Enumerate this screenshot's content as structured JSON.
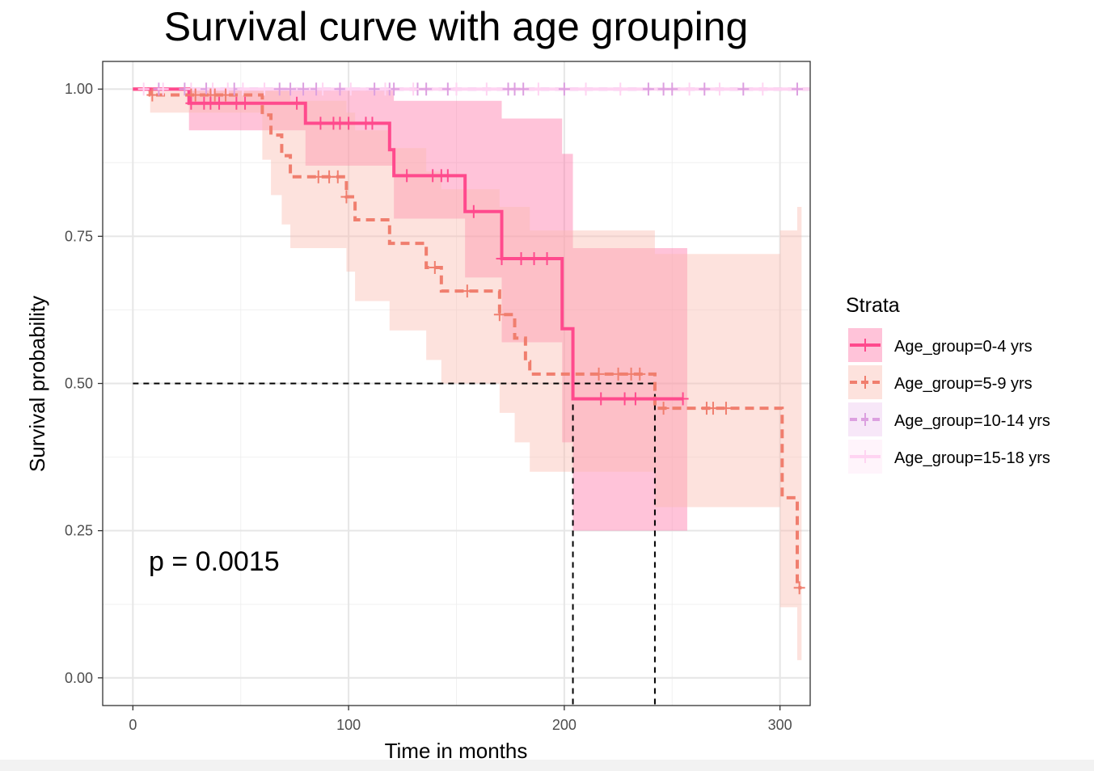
{
  "chart_data": {
    "type": "line",
    "title": "Survival curve with age grouping",
    "xlabel": "Time in months",
    "ylabel": "Survival probability",
    "xlim": [
      -14,
      314
    ],
    "ylim": [
      -0.047,
      1.047
    ],
    "x_ticks": [
      0,
      100,
      200,
      300
    ],
    "x_tick_labels": [
      "0",
      "100",
      "200",
      "300"
    ],
    "y_ticks": [
      0,
      0.25,
      0.5,
      0.75,
      1.0
    ],
    "y_tick_labels": [
      "0.00",
      "0.25",
      "0.50",
      "0.75",
      "1.00"
    ],
    "grid": true,
    "legend": {
      "title": "Strata",
      "position": "right"
    },
    "annotation": "p = 0.0015",
    "median_lines": [
      {
        "x": 204,
        "y": 0.5
      },
      {
        "x": 242,
        "y": 0.5
      }
    ],
    "series": [
      {
        "name": "Age_group=0-4 yrs",
        "color": "#ff4a8d",
        "fill": "#ff6fa5",
        "dash": "solid",
        "steps": [
          [
            0,
            1.0
          ],
          [
            26,
            0.976
          ],
          [
            80,
            0.942
          ],
          [
            119,
            0.897
          ],
          [
            121,
            0.853
          ],
          [
            154,
            0.792
          ],
          [
            171,
            0.712
          ],
          [
            199,
            0.593
          ],
          [
            204,
            0.474
          ],
          [
            255,
            0.474
          ]
        ],
        "lower": [
          [
            0,
            1.0
          ],
          [
            26,
            0.93
          ],
          [
            80,
            0.87
          ],
          [
            121,
            0.78
          ],
          [
            154,
            0.68
          ],
          [
            171,
            0.57
          ],
          [
            199,
            0.4
          ],
          [
            204,
            0.25
          ],
          [
            255,
            0.25
          ]
        ],
        "upper": [
          [
            0,
            1.0
          ],
          [
            26,
            1.0
          ],
          [
            121,
            0.98
          ],
          [
            171,
            0.95
          ],
          [
            199,
            0.89
          ],
          [
            204,
            0.73
          ],
          [
            255,
            0.73
          ]
        ],
        "censor": [
          27,
          33,
          36,
          40,
          48,
          52,
          76,
          87,
          93,
          96,
          100,
          108,
          111,
          127,
          139,
          143,
          146,
          158,
          171,
          180,
          186,
          192,
          217,
          228,
          233,
          255
        ]
      },
      {
        "name": "Age_group=5-9 yrs",
        "color": "#f07e6e",
        "fill": "#fbb9ae",
        "dash": "dashed",
        "steps": [
          [
            0,
            1.0
          ],
          [
            8,
            0.99
          ],
          [
            60,
            0.956
          ],
          [
            64,
            0.922
          ],
          [
            69,
            0.887
          ],
          [
            73,
            0.851
          ],
          [
            99,
            0.817
          ],
          [
            103,
            0.778
          ],
          [
            119,
            0.738
          ],
          [
            136,
            0.697
          ],
          [
            143,
            0.657
          ],
          [
            170,
            0.617
          ],
          [
            177,
            0.577
          ],
          [
            182,
            0.537
          ],
          [
            184,
            0.516
          ],
          [
            209,
            0.516
          ],
          [
            242,
            0.458
          ],
          [
            300,
            0.458
          ],
          [
            301,
            0.306
          ],
          [
            308,
            0.153
          ],
          [
            310,
            0.153
          ]
        ],
        "lower": [
          [
            0,
            1.0
          ],
          [
            8,
            0.96
          ],
          [
            60,
            0.88
          ],
          [
            64,
            0.82
          ],
          [
            69,
            0.77
          ],
          [
            73,
            0.73
          ],
          [
            99,
            0.69
          ],
          [
            103,
            0.64
          ],
          [
            119,
            0.59
          ],
          [
            136,
            0.54
          ],
          [
            143,
            0.5
          ],
          [
            170,
            0.45
          ],
          [
            177,
            0.4
          ],
          [
            184,
            0.35
          ],
          [
            242,
            0.29
          ],
          [
            300,
            0.12
          ],
          [
            308,
            0.03
          ]
        ],
        "upper": [
          [
            0,
            1.0
          ],
          [
            60,
            1.0
          ],
          [
            73,
            0.98
          ],
          [
            99,
            0.96
          ],
          [
            103,
            0.93
          ],
          [
            119,
            0.9
          ],
          [
            136,
            0.86
          ],
          [
            143,
            0.83
          ],
          [
            170,
            0.8
          ],
          [
            184,
            0.76
          ],
          [
            242,
            0.72
          ],
          [
            300,
            0.76
          ],
          [
            308,
            0.8
          ]
        ],
        "censor": [
          9,
          27,
          29,
          36,
          38,
          43,
          86,
          91,
          95,
          99,
          140,
          155,
          170,
          216,
          225,
          231,
          235,
          246,
          266,
          269,
          275,
          309
        ]
      },
      {
        "name": "Age_group=10-14 yrs",
        "color": "#dca0e0",
        "fill": "#ecc6ee",
        "dash": "dashed",
        "steps": [
          [
            0,
            1.0
          ],
          [
            314,
            1.0
          ]
        ],
        "censor": [
          12,
          24,
          34,
          47,
          68,
          73,
          79,
          85,
          96,
          112,
          119,
          121,
          132,
          136,
          146,
          174,
          177,
          181,
          200,
          239,
          246,
          250,
          265,
          283,
          308
        ]
      },
      {
        "name": "Age_group=15-18 yrs",
        "color": "#ffd4f2",
        "fill": "#ffe4f6",
        "dash": "solid",
        "steps": [
          [
            0,
            1.0
          ],
          [
            314,
            1.0
          ]
        ],
        "censor": [
          5,
          14,
          27,
          37,
          44,
          51,
          61,
          88,
          101,
          117,
          130,
          150,
          164,
          188,
          210,
          226,
          258,
          272,
          292
        ]
      }
    ]
  }
}
